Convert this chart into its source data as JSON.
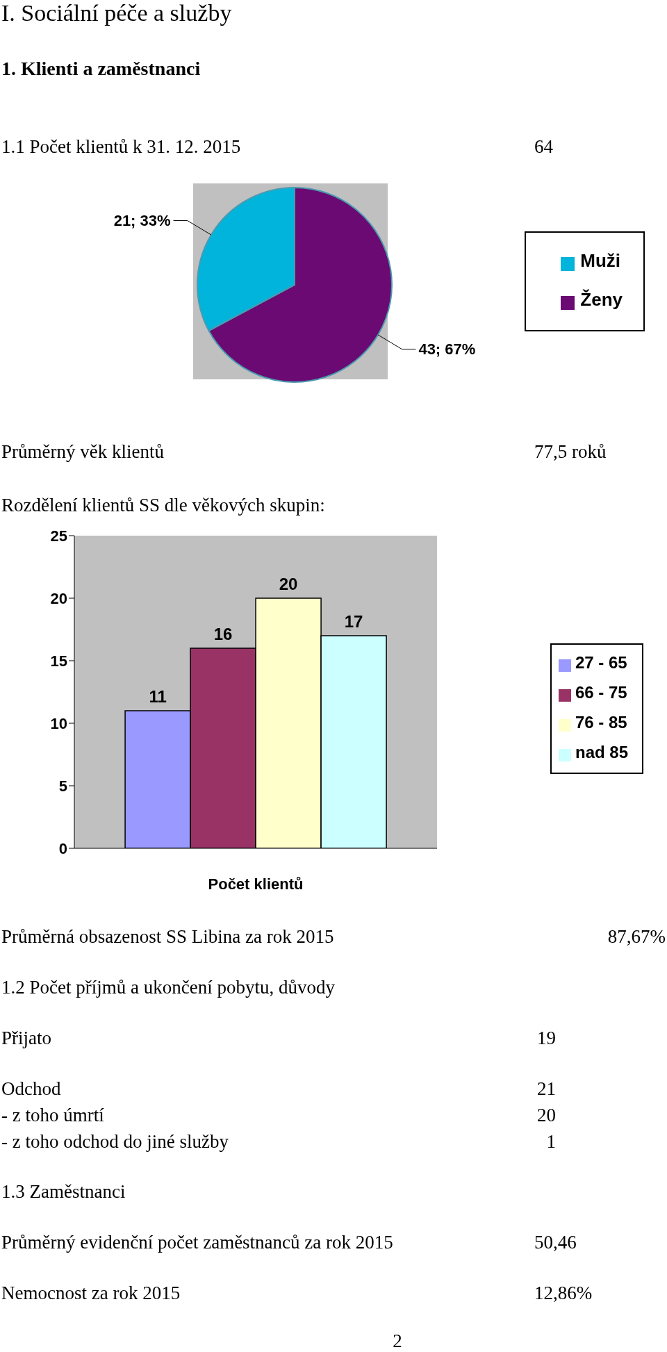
{
  "chart_data": [
    {
      "type": "pie",
      "title": "1.1 Počet klientů k 31. 12. 2015",
      "subtitle": "64",
      "categories": [
        "Ženy",
        "Muži"
      ],
      "values": [
        43,
        21
      ],
      "colors": [
        "#6a0a72",
        "#00b4dc"
      ],
      "value_labels": [
        "43; 67%",
        "21; 33%"
      ],
      "legend": "right",
      "annotations": [
        "I. Sociální péče a služby",
        "1. Klienti a zaměstnanci",
        "Průměrný věk klientů",
        "77,5 roků"
      ]
    },
    {
      "type": "bar",
      "title": "Rozdělení klientů SS dle věkových skupin:",
      "xlabel": "Počet klientů",
      "categories": [
        null
      ],
      "series": [
        {
          "name": "27 - 65",
          "color": "#9999ff",
          "values": [
            11
          ]
        },
        {
          "name": "66 - 75",
          "color": "#993366",
          "values": [
            16
          ]
        },
        {
          "name": "76 - 85",
          "color": "#ffffcc",
          "values": [
            20
          ]
        },
        {
          "name": "nad 85",
          "color": "#ccffff",
          "values": [
            17
          ]
        }
      ],
      "ylim": [
        0,
        25
      ],
      "yticks": [
        0,
        5,
        10,
        15,
        20,
        25
      ],
      "data_labels": true,
      "legend": "right",
      "annotations": [
        "Průměrná obsazenost SS Libina za rok 2015",
        "87,67%",
        "1.2 Počet příjmů a ukončení pobytu, důvody",
        "Přijato",
        "19",
        "Odchod",
        "21",
        "- z toho úmrtí",
        "20",
        "- z toho odchod do jiné služby",
        "1",
        "1.3 Zaměstnanci",
        "Průměrný evidenční počet zaměstnanců za rok 2015",
        "50,46",
        "Nemocnost za rok 2015",
        "12,86%",
        "2"
      ]
    }
  ]
}
